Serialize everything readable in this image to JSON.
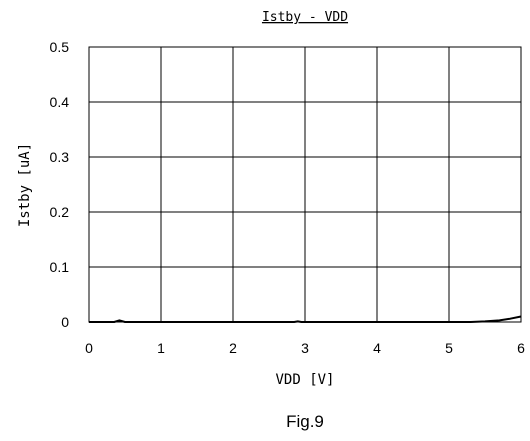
{
  "chart_data": {
    "type": "line",
    "title": "Istby - VDD",
    "xlabel": "VDD [V]",
    "ylabel": "Istby [uA]",
    "xlim": [
      0,
      6
    ],
    "ylim": [
      0,
      0.5
    ],
    "xticks": [
      0,
      1,
      2,
      3,
      4,
      5,
      6
    ],
    "xtick_labels": [
      "0",
      "1",
      "2",
      "3",
      "4",
      "5",
      "6"
    ],
    "yticks": [
      0,
      0.1,
      0.2,
      0.3,
      0.4,
      0.5
    ],
    "ytick_labels": [
      "0",
      "0.1",
      "0.2",
      "0.3",
      "0.4",
      "0.5"
    ],
    "grid": true,
    "series": [
      {
        "color": "#000000",
        "x": [
          0,
          0.35,
          0.42,
          0.5,
          1,
          2,
          2.85,
          2.9,
          2.95,
          3,
          4,
          5,
          5.3,
          5.5,
          5.7,
          5.85,
          6
        ],
        "y": [
          0,
          0,
          0.003,
          0,
          0,
          0,
          0,
          0.001,
          0,
          0,
          0,
          0,
          0,
          0.001,
          0.003,
          0.006,
          0.01
        ]
      }
    ]
  },
  "caption": "Fig.9"
}
